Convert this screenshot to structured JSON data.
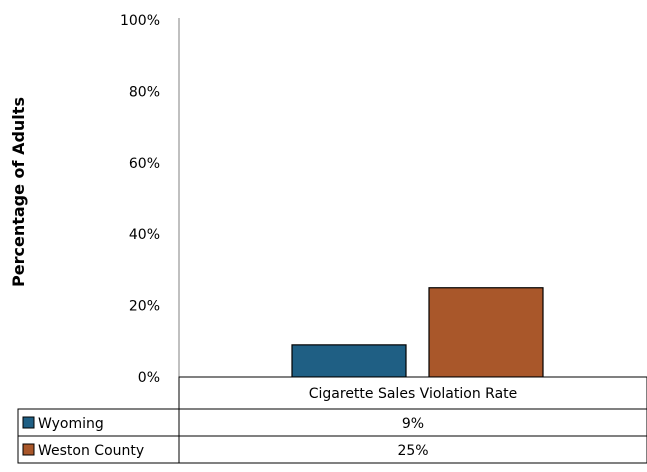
{
  "chart_data": {
    "type": "bar",
    "title": "",
    "xlabel": "",
    "ylabel": "Percentage of Adults",
    "ylim": [
      0,
      100
    ],
    "yticks": [
      "0%",
      "20%",
      "40%",
      "60%",
      "80%",
      "100%"
    ],
    "categories": [
      "Cigarette Sales Violation Rate"
    ],
    "series": [
      {
        "name": "Wyoming",
        "values": [
          9
        ],
        "labels": [
          "9%"
        ],
        "color": "#1f5f84"
      },
      {
        "name": "Weston County",
        "values": [
          25
        ],
        "labels": [
          "25%"
        ],
        "color": "#a9572a"
      }
    ],
    "grid": false,
    "legend": "data-table"
  }
}
